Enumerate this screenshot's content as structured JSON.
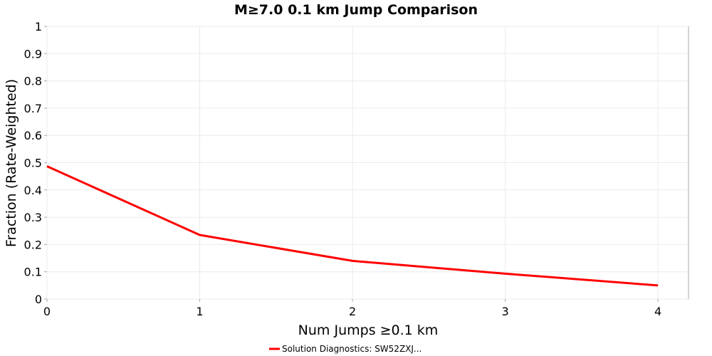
{
  "chart_data": {
    "type": "line",
    "title": "M≥7.0 0.1 km Jump Comparison",
    "xlabel": "Num Jumps ≥0.1 km",
    "ylabel": "Fraction (Rate-Weighted)",
    "xlim": [
      0,
      4.2
    ],
    "ylim": [
      0,
      1
    ],
    "x_ticks": [
      0,
      1,
      2,
      3,
      4
    ],
    "x_tick_labels": [
      "0",
      "1",
      "2",
      "3",
      "4"
    ],
    "y_ticks": [
      0,
      0.1,
      0.2,
      0.3,
      0.4,
      0.5,
      0.6,
      0.7,
      0.8,
      0.9,
      1
    ],
    "y_tick_labels": [
      "0",
      "0.1",
      "0.2",
      "0.3",
      "0.4",
      "0.5",
      "0.6",
      "0.7",
      "0.8",
      "0.9",
      "1"
    ],
    "grid": true,
    "legend_position": "bottom-center",
    "series": [
      {
        "name": "Solution Diagnostics: SW52ZXJ...",
        "color": "#ff0000",
        "x": [
          0,
          1,
          2,
          3,
          4
        ],
        "y": [
          0.487,
          0.235,
          0.14,
          0.093,
          0.05
        ]
      }
    ]
  }
}
